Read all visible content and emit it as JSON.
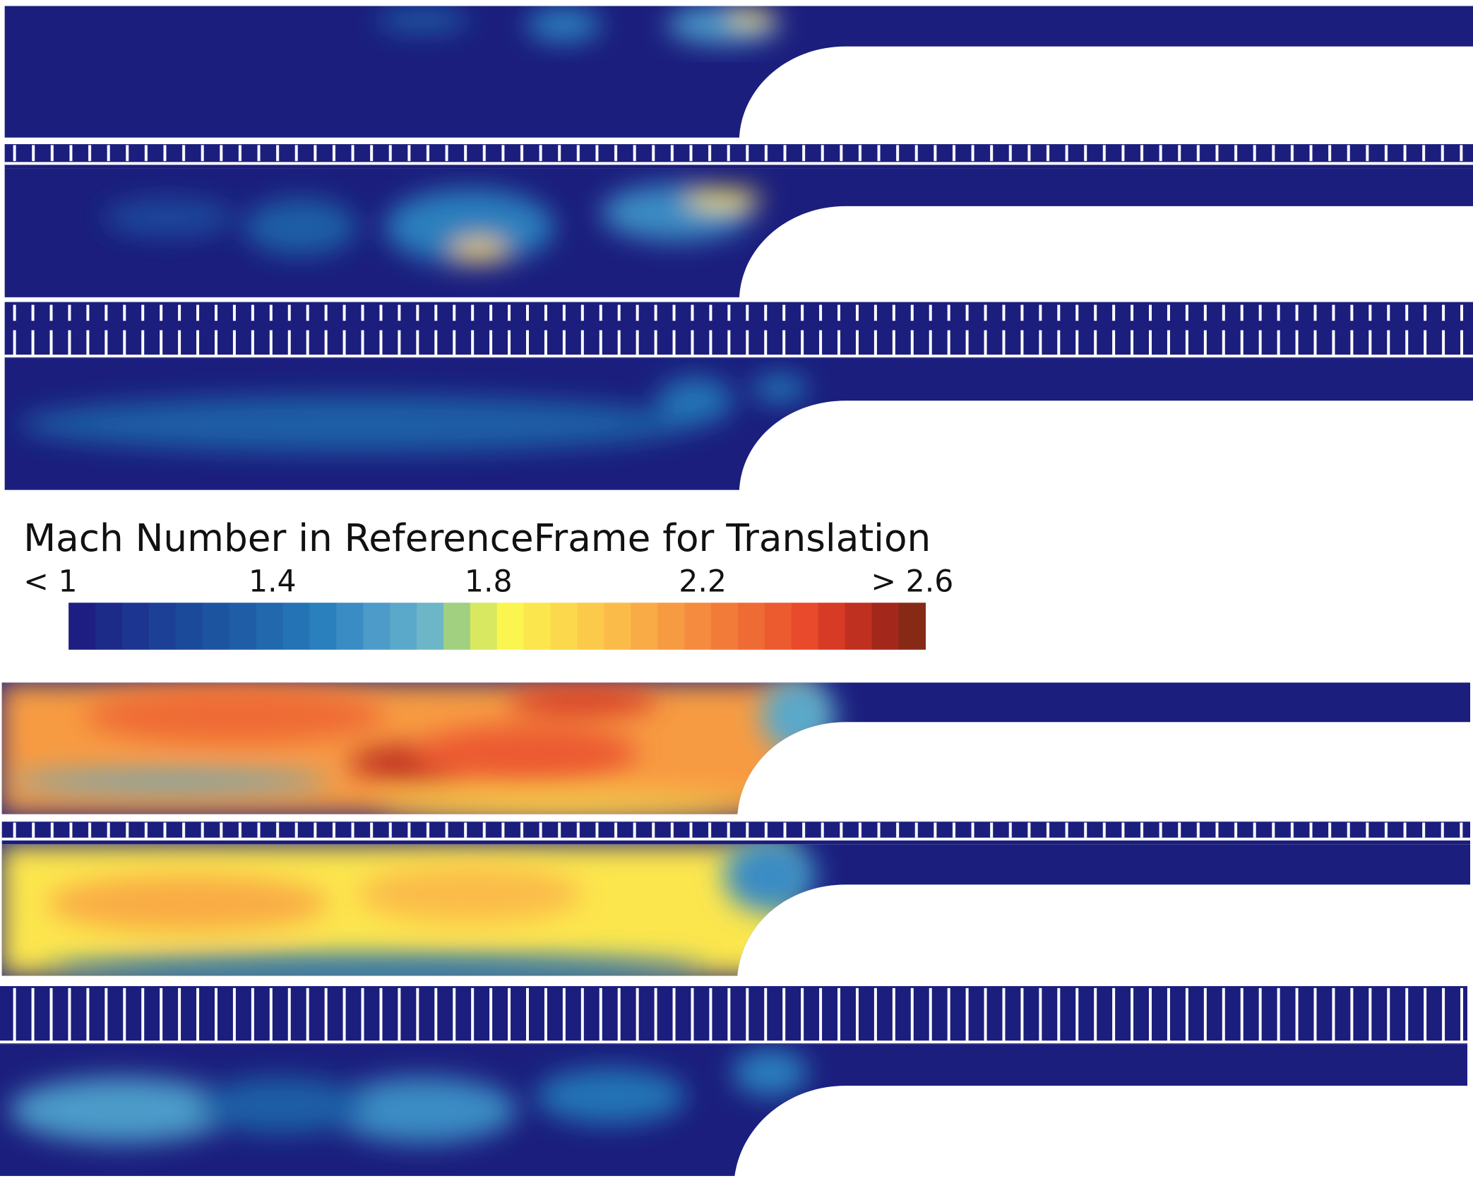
{
  "legend": {
    "title": "Mach Number in ReferenceFrame for Translation",
    "labels": [
      "< 1",
      "1.4",
      "1.8",
      "2.2",
      "> 2.6"
    ],
    "colors": [
      "#1e1e82",
      "#1c2a88",
      "#1c3590",
      "#1c4096",
      "#1c4a9b",
      "#1d54a0",
      "#1f5ea6",
      "#2168ad",
      "#2473b5",
      "#2a7fbd",
      "#3a8cc4",
      "#4c9bc9",
      "#5aa8ca",
      "#6cb6c8",
      "#a0d080",
      "#d8e860",
      "#fbf550",
      "#fce64e",
      "#fcd84c",
      "#fcca4a",
      "#fbbb48",
      "#f9ab45",
      "#f79b42",
      "#f58b3f",
      "#f27b3a",
      "#ef6b35",
      "#ec5a30",
      "#e94a2b",
      "#d83b25",
      "#c03020",
      "#a3281b",
      "#862a16"
    ]
  }
}
